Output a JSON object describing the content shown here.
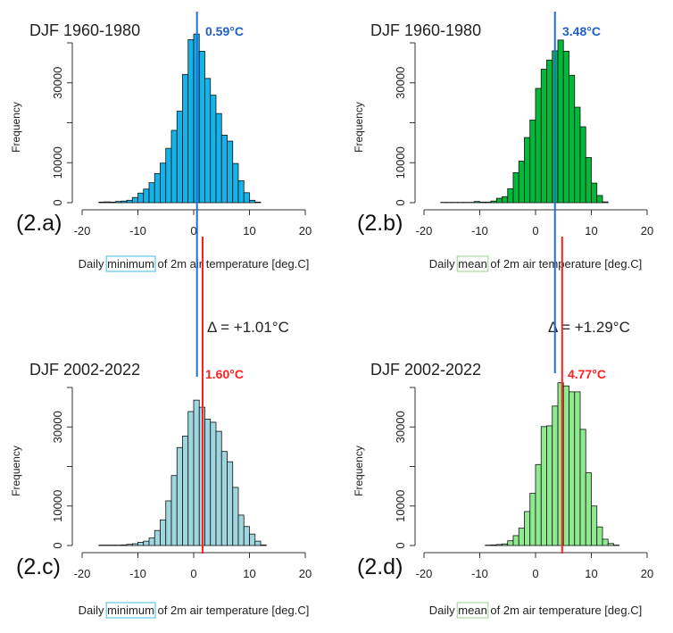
{
  "chart_data": [
    {
      "id": "2.a",
      "type": "bar",
      "panel_label": "(2.a)",
      "title": "DJF 1960-1980",
      "xlabel_parts": [
        "Daily ",
        "minimum",
        " of 2m air temperature [deg.C]"
      ],
      "ylabel": "Frequency",
      "bar_color": "#14b4ea",
      "highlight_color": "#5cc8e6",
      "xlim": [
        -20,
        20
      ],
      "xticks": [
        "-20",
        "-10",
        "0",
        "10",
        "20"
      ],
      "ylim": [
        0,
        40000
      ],
      "yticks": [
        "0",
        "10000",
        "30000"
      ],
      "bin_start": -17,
      "bin_width": 1,
      "values": [
        150,
        200,
        150,
        300,
        400,
        600,
        1300,
        2400,
        3400,
        5000,
        7300,
        9900,
        13600,
        18100,
        22900,
        32100,
        40800,
        42200,
        37900,
        31100,
        26900,
        22300,
        16900,
        15400,
        9800,
        5500,
        2500,
        600,
        150
      ],
      "mean_label": "0.59°C",
      "mean": 0.59,
      "mean_color": "#1f5fc0"
    },
    {
      "id": "2.b",
      "type": "bar",
      "panel_label": "(2.b)",
      "title": "DJF 1960-1980",
      "xlabel_parts": [
        "Daily ",
        "mean",
        " of 2m air temperature [deg.C]"
      ],
      "ylabel": "Frequency",
      "bar_color": "#00b83a",
      "highlight_color": "#a9d8a2",
      "xlim": [
        -20,
        20
      ],
      "xticks": [
        "-20",
        "-10",
        "0",
        "10",
        "20"
      ],
      "ylim": [
        0,
        40000
      ],
      "yticks": [
        "0",
        "10000",
        "30000"
      ],
      "bin_start": -17,
      "bin_width": 1,
      "values": [
        80,
        80,
        80,
        80,
        80,
        80,
        300,
        150,
        150,
        400,
        1100,
        1500,
        3500,
        7500,
        10400,
        16300,
        20700,
        28600,
        33400,
        35700,
        38000,
        40700,
        37900,
        31900,
        23900,
        19000,
        11300,
        4900,
        1800,
        200
      ],
      "mean_label": "3.48°C",
      "mean": 3.48,
      "mean_color": "#1f5fc0"
    },
    {
      "id": "2.c",
      "type": "bar",
      "panel_label": "(2.c)",
      "title": "DJF 2002-2022",
      "xlabel_parts": [
        "Daily ",
        "minimum",
        " of 2m air temperature [deg.C]"
      ],
      "ylabel": "Frequency",
      "bar_color": "#a0d6e0",
      "highlight_color": "#5cc8e6",
      "xlim": [
        -20,
        20
      ],
      "xticks": [
        "-20",
        "-10",
        "0",
        "10",
        "20"
      ],
      "ylim": [
        0,
        40000
      ],
      "yticks": [
        "0",
        "10000",
        "30000"
      ],
      "bin_start": -17,
      "bin_width": 1,
      "values": [
        100,
        100,
        100,
        100,
        150,
        300,
        450,
        800,
        1100,
        1900,
        3800,
        6500,
        11300,
        17700,
        24800,
        27700,
        33900,
        36800,
        35000,
        32000,
        31200,
        28900,
        23800,
        21200,
        14700,
        7700,
        4800,
        2900,
        1100,
        150
      ],
      "mean_label": "1.60°C",
      "mean": 1.6,
      "mean_color": "#ff2020"
    },
    {
      "id": "2.d",
      "type": "bar",
      "panel_label": "(2.d)",
      "title": "DJF 2002-2022",
      "xlabel_parts": [
        "Daily ",
        "mean",
        " of 2m air temperature [deg.C]"
      ],
      "ylabel": "Frequency",
      "bar_color": "#8fe98f",
      "highlight_color": "#a9d8a2",
      "xlim": [
        -20,
        20
      ],
      "xticks": [
        "-20",
        "-10",
        "0",
        "10",
        "20"
      ],
      "ylim": [
        0,
        40000
      ],
      "yticks": [
        "0",
        "10000",
        "30000"
      ],
      "bin_start": -9,
      "bin_width": 1,
      "values": [
        100,
        150,
        250,
        400,
        1200,
        2500,
        4400,
        8600,
        13200,
        20500,
        30100,
        30300,
        35300,
        41200,
        40400,
        38900,
        38900,
        29400,
        18400,
        10000,
        4700,
        1600,
        500,
        100
      ],
      "mean_label": "4.77°C",
      "mean": 4.77,
      "mean_color": "#ff2020"
    }
  ],
  "annotations": {
    "delta_min": "Δ = +1.01°C",
    "delta_mean": "Δ = +1.29°C",
    "baseline_color": "#1f6fe0",
    "recent_color": "#ff2020"
  }
}
